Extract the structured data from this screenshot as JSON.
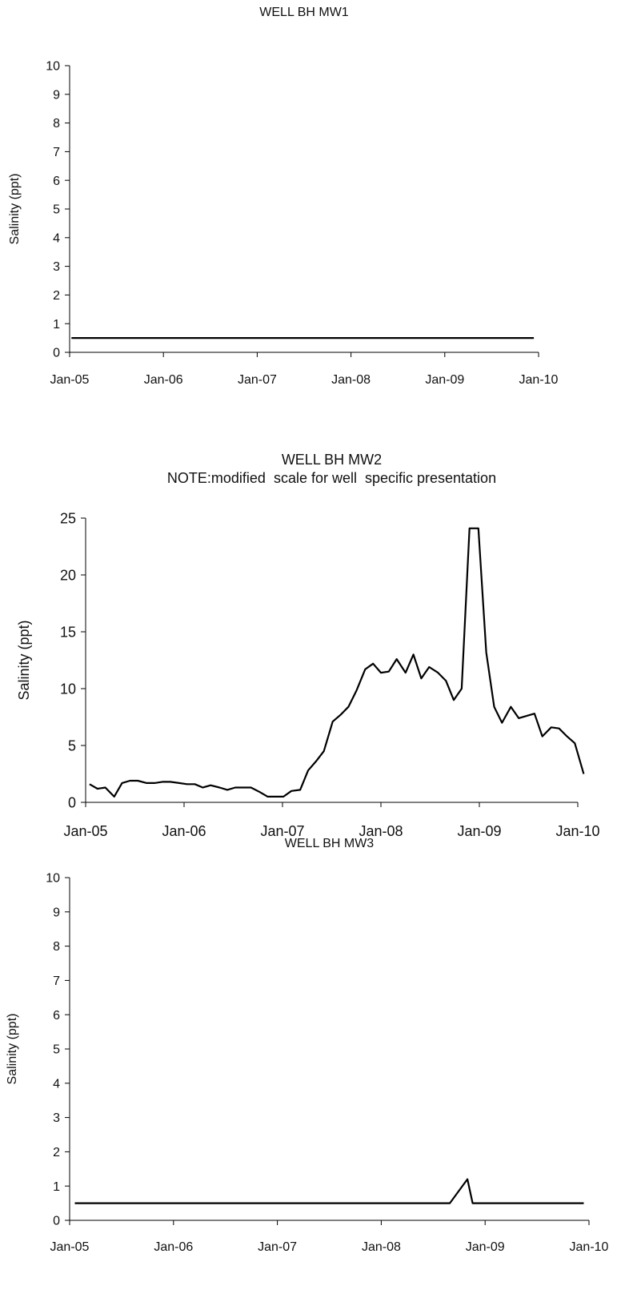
{
  "chart_data": [
    {
      "type": "line",
      "title": "WELL BH MW1",
      "subtitle": "",
      "xlabel": "",
      "ylabel": "Salinity (ppt)",
      "ylim": [
        0,
        10
      ],
      "y_ticks": [
        "0",
        "1",
        "2",
        "3",
        "4",
        "5",
        "6",
        "7",
        "8",
        "9",
        "10"
      ],
      "x_ticks": [
        "Jan-05",
        "Jan-06",
        "Jan-07",
        "Jan-08",
        "Jan-09",
        "Jan-10"
      ],
      "grid": false,
      "series": [
        {
          "points": [
            [
              2005.02,
              0.5
            ],
            [
              2009.95,
              0.5
            ]
          ]
        }
      ]
    },
    {
      "type": "line",
      "title": "WELL BH MW2",
      "subtitle": "NOTE:modified  scale for well  specific presentation",
      "xlabel": "",
      "ylabel": "Salinity (ppt)",
      "ylim": [
        0,
        25
      ],
      "y_ticks": [
        "0",
        "5",
        "10",
        "15",
        "20",
        "25"
      ],
      "x_ticks": [
        "Jan-05",
        "Jan-06",
        "Jan-07",
        "Jan-08",
        "Jan-09",
        "Jan-10"
      ],
      "grid": false,
      "series": [
        {
          "points": [
            [
              2005.04,
              1.6
            ],
            [
              2005.12,
              1.2
            ],
            [
              2005.2,
              1.3
            ],
            [
              2005.29,
              0.5
            ],
            [
              2005.37,
              1.7
            ],
            [
              2005.45,
              1.9
            ],
            [
              2005.53,
              1.9
            ],
            [
              2005.62,
              1.7
            ],
            [
              2005.7,
              1.7
            ],
            [
              2005.78,
              1.8
            ],
            [
              2005.86,
              1.8
            ],
            [
              2005.95,
              1.7
            ],
            [
              2006.03,
              1.6
            ],
            [
              2006.11,
              1.6
            ],
            [
              2006.19,
              1.3
            ],
            [
              2006.27,
              1.5
            ],
            [
              2006.36,
              1.3
            ],
            [
              2006.44,
              1.1
            ],
            [
              2006.52,
              1.3
            ],
            [
              2006.6,
              1.3
            ],
            [
              2006.68,
              1.3
            ],
            [
              2006.77,
              0.9
            ],
            [
              2006.85,
              0.5
            ],
            [
              2006.93,
              0.5
            ],
            [
              2007.01,
              0.5
            ],
            [
              2007.09,
              1.0
            ],
            [
              2007.18,
              1.1
            ],
            [
              2007.26,
              2.8
            ],
            [
              2007.34,
              3.6
            ],
            [
              2007.42,
              4.5
            ],
            [
              2007.51,
              7.1
            ],
            [
              2007.59,
              7.7
            ],
            [
              2007.67,
              8.4
            ],
            [
              2007.75,
              9.8
            ],
            [
              2007.84,
              11.7
            ],
            [
              2007.92,
              12.2
            ],
            [
              2008.0,
              11.4
            ],
            [
              2008.08,
              11.5
            ],
            [
              2008.16,
              12.6
            ],
            [
              2008.25,
              11.4
            ],
            [
              2008.33,
              13.0
            ],
            [
              2008.41,
              10.9
            ],
            [
              2008.49,
              11.9
            ],
            [
              2008.58,
              11.4
            ],
            [
              2008.66,
              10.7
            ],
            [
              2008.74,
              9.0
            ],
            [
              2008.82,
              10.0
            ],
            [
              2008.9,
              24.1
            ],
            [
              2008.99,
              24.1
            ],
            [
              2009.07,
              13.2
            ],
            [
              2009.15,
              8.4
            ],
            [
              2009.23,
              7.0
            ],
            [
              2009.32,
              8.4
            ],
            [
              2009.4,
              7.4
            ],
            [
              2009.48,
              7.6
            ],
            [
              2009.56,
              7.8
            ],
            [
              2009.64,
              5.8
            ],
            [
              2009.73,
              6.6
            ],
            [
              2009.81,
              6.5
            ],
            [
              2009.89,
              5.8
            ],
            [
              2009.97,
              5.2
            ],
            [
              2010.06,
              2.5
            ]
          ]
        }
      ]
    },
    {
      "type": "line",
      "title": "WELL BH MW3",
      "subtitle": "",
      "xlabel": "",
      "ylabel": "Salinity (ppt)",
      "ylim": [
        0,
        10
      ],
      "y_ticks": [
        "0",
        "1",
        "2",
        "3",
        "4",
        "5",
        "6",
        "7",
        "8",
        "9",
        "10"
      ],
      "x_ticks": [
        "Jan-05",
        "Jan-06",
        "Jan-07",
        "Jan-08",
        "Jan-09",
        "Jan-10"
      ],
      "grid": false,
      "series": [
        {
          "points": [
            [
              2005.05,
              0.5
            ],
            [
              2008.66,
              0.5
            ],
            [
              2008.83,
              1.2
            ],
            [
              2008.88,
              0.5
            ],
            [
              2009.95,
              0.5
            ]
          ]
        }
      ]
    }
  ]
}
